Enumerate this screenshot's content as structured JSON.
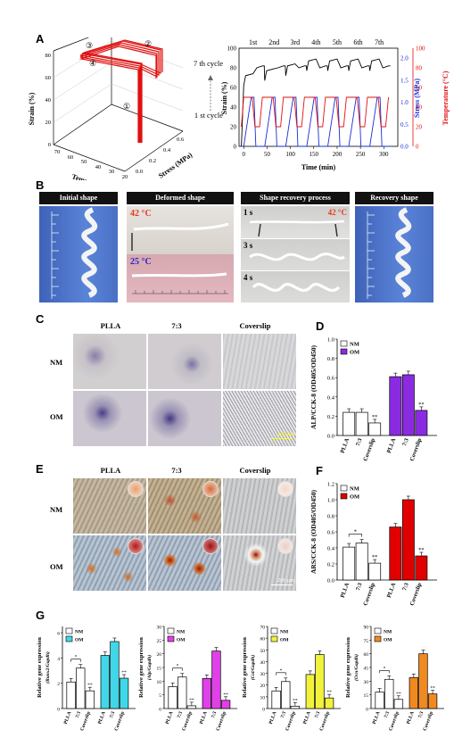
{
  "panels": {
    "a": "A",
    "b": "B",
    "c": "C",
    "d": "D",
    "e": "E",
    "f": "F",
    "g": "G"
  },
  "panelA": {
    "left3d": {
      "zlabel": "Strain (%)",
      "xlabel": "Temperature (°C)",
      "ylabel": "Stress (MPa)",
      "zticks": [
        "0",
        "20",
        "40",
        "60",
        "80"
      ],
      "xticks": [
        "70",
        "60",
        "50",
        "40",
        "30",
        "20"
      ],
      "yticks": [
        "0.0",
        "0.2",
        "0.4",
        "0.6"
      ],
      "steps": [
        "①",
        "②",
        "③",
        "④"
      ],
      "cycle_top": "7 th cycle",
      "cycle_bottom": "1 st cycle"
    },
    "right": {
      "xlabel": "Time (min)",
      "ylabel_left": "Strain (%)",
      "ylabel_mid": "Stress (MPa)",
      "ylabel_right": "Temperature (°C)",
      "xticks": [
        "0",
        "50",
        "100",
        "150",
        "200",
        "250",
        "300"
      ],
      "strain_ticks": [
        "0",
        "20",
        "40",
        "60",
        "80",
        "100"
      ],
      "stress_ticks": [
        "0.0",
        "0.5",
        "1.0",
        "1.5",
        "2.0"
      ],
      "temp_ticks": [
        "0",
        "20",
        "40",
        "60",
        "80",
        "100"
      ],
      "cycles": [
        "1st",
        "2nd",
        "3rd",
        "4th",
        "5th",
        "6th",
        "7th"
      ],
      "colors": {
        "strain": "#000000",
        "stress": "#1a2fd6",
        "temp": "#e01010"
      }
    }
  },
  "panelB": {
    "headers": [
      "Initial shape",
      "Deformed shape",
      "Shape recovery process",
      "Recovery shape"
    ],
    "t42": "42 °C",
    "t25": "25 °C",
    "t42b": "42 °C",
    "s1": "1 s",
    "s3": "3 s",
    "s4": "4 s"
  },
  "panelC": {
    "cols": [
      "PLLA",
      "7:3",
      "Coverslip"
    ],
    "rows": [
      "NM",
      "OM"
    ],
    "scale": "200 µm"
  },
  "panelD": {
    "ylabel": "ALP/CCK-8 (OD405/OD450)",
    "legend": [
      "NM",
      "OM"
    ],
    "colors": {
      "nm": "#ffffff",
      "om": "#8a2be2"
    },
    "yticks": [
      "0.0",
      "0.2",
      "0.4",
      "0.6",
      "0.8",
      "1.0"
    ],
    "groups": [
      "PLLA",
      "7:3",
      "Coverslip",
      "PLLA",
      "7:3",
      "Coverslip"
    ],
    "sig": "**"
  },
  "panelE": {
    "cols": [
      "PLLA",
      "7:3",
      "Coverslip"
    ],
    "rows": [
      "NM",
      "OM"
    ],
    "scale": "200 µm"
  },
  "panelF": {
    "ylabel": "ARS/CCK-8 (OD405/OD450)",
    "legend": [
      "NM",
      "OM"
    ],
    "colors": {
      "nm": "#ffffff",
      "om": "#e00000"
    },
    "yticks": [
      "0.0",
      "0.2",
      "0.4",
      "0.6",
      "0.8",
      "1.0",
      "1.2"
    ],
    "groups": [
      "PLLA",
      "7:3",
      "Coverslip",
      "PLLA",
      "7:3",
      "Coverslip"
    ],
    "sig": "**",
    "star": "*"
  },
  "panelG": {
    "ylabel": "Relative gene expression",
    "charts": [
      {
        "gene": "(Runx2/Gapdh)",
        "color": "#40d8e8",
        "yticks": [
          "0",
          "2",
          "4",
          "6"
        ]
      },
      {
        "gene": "(Alp/Gapdh)",
        "color": "#e040e8",
        "yticks": [
          "0",
          "5",
          "10",
          "15",
          "20",
          "25",
          "30"
        ]
      },
      {
        "gene": "(Col/Gapdh)",
        "color": "#f2f23c",
        "yticks": [
          "0",
          "10",
          "20",
          "30",
          "40",
          "50",
          "60",
          "70"
        ]
      },
      {
        "gene": "(Ocn/Gapdh)",
        "color": "#f08a20",
        "yticks": [
          "0",
          "15",
          "30",
          "45",
          "60",
          "75",
          "90"
        ]
      }
    ],
    "legend": [
      "NM",
      "OM"
    ],
    "groups": [
      "PLLA",
      "7:3",
      "Coverslip",
      "PLLA",
      "7:3",
      "Coverslip"
    ],
    "sig": "**",
    "star": "*"
  },
  "chart_data": [
    {
      "type": "line",
      "title": "",
      "xlabel": "Time (min)",
      "ylabel": "Strain (%)",
      "xlim": [
        -10,
        330
      ],
      "series": [
        {
          "name": "Strain (%)",
          "values": [
            [
              0,
              0
            ],
            [
              5,
              62
            ],
            [
              25,
              70
            ],
            [
              35,
              70
            ],
            [
              45,
              80
            ],
            [
              55,
              80
            ]
          ]
        }
      ]
    },
    {
      "type": "bar",
      "ylabel": "ALP/CCK-8",
      "categories": [
        "PLLA",
        "7:3",
        "Coverslip"
      ],
      "ylim": [
        0,
        1.0
      ],
      "series": [
        {
          "name": "NM",
          "values": [
            0.24,
            0.24,
            0.13
          ]
        },
        {
          "name": "OM",
          "values": [
            0.61,
            0.63,
            0.26
          ]
        }
      ]
    },
    {
      "type": "bar",
      "ylabel": "ARS/CCK-8",
      "categories": [
        "PLLA",
        "7:3",
        "Coverslip"
      ],
      "ylim": [
        0,
        1.2
      ],
      "series": [
        {
          "name": "NM",
          "values": [
            0.41,
            0.46,
            0.21
          ]
        },
        {
          "name": "OM",
          "values": [
            0.66,
            1.0,
            0.3
          ]
        }
      ]
    },
    {
      "type": "bar",
      "ylabel": "(Runx2/Gapdh)",
      "categories": [
        "PLLA",
        "7:3",
        "Coverslip"
      ],
      "ylim": [
        0,
        6.5
      ],
      "series": [
        {
          "name": "NM",
          "values": [
            2.1,
            3.2,
            1.4
          ]
        },
        {
          "name": "OM",
          "values": [
            4.2,
            5.3,
            2.4
          ]
        }
      ]
    },
    {
      "type": "bar",
      "ylabel": "(Alp/Gapdh)",
      "categories": [
        "PLLA",
        "7:3",
        "Coverslip"
      ],
      "ylim": [
        0,
        30
      ],
      "series": [
        {
          "name": "NM",
          "values": [
            8,
            11.5,
            1
          ]
        },
        {
          "name": "OM",
          "values": [
            11,
            21,
            3
          ]
        }
      ]
    },
    {
      "type": "bar",
      "ylabel": "(Col/Gapdh)",
      "categories": [
        "PLLA",
        "7:3",
        "Coverslip"
      ],
      "ylim": [
        0,
        70
      ],
      "series": [
        {
          "name": "NM",
          "values": [
            15,
            23,
            2
          ]
        },
        {
          "name": "OM",
          "values": [
            29,
            46,
            9
          ]
        }
      ]
    },
    {
      "type": "bar",
      "ylabel": "(Ocn/Gapdh)",
      "categories": [
        "PLLA",
        "7:3",
        "Coverslip"
      ],
      "ylim": [
        0,
        90
      ],
      "series": [
        {
          "name": "NM",
          "values": [
            18,
            32,
            10
          ]
        },
        {
          "name": "OM",
          "values": [
            34,
            60,
            16
          ]
        }
      ]
    }
  ]
}
